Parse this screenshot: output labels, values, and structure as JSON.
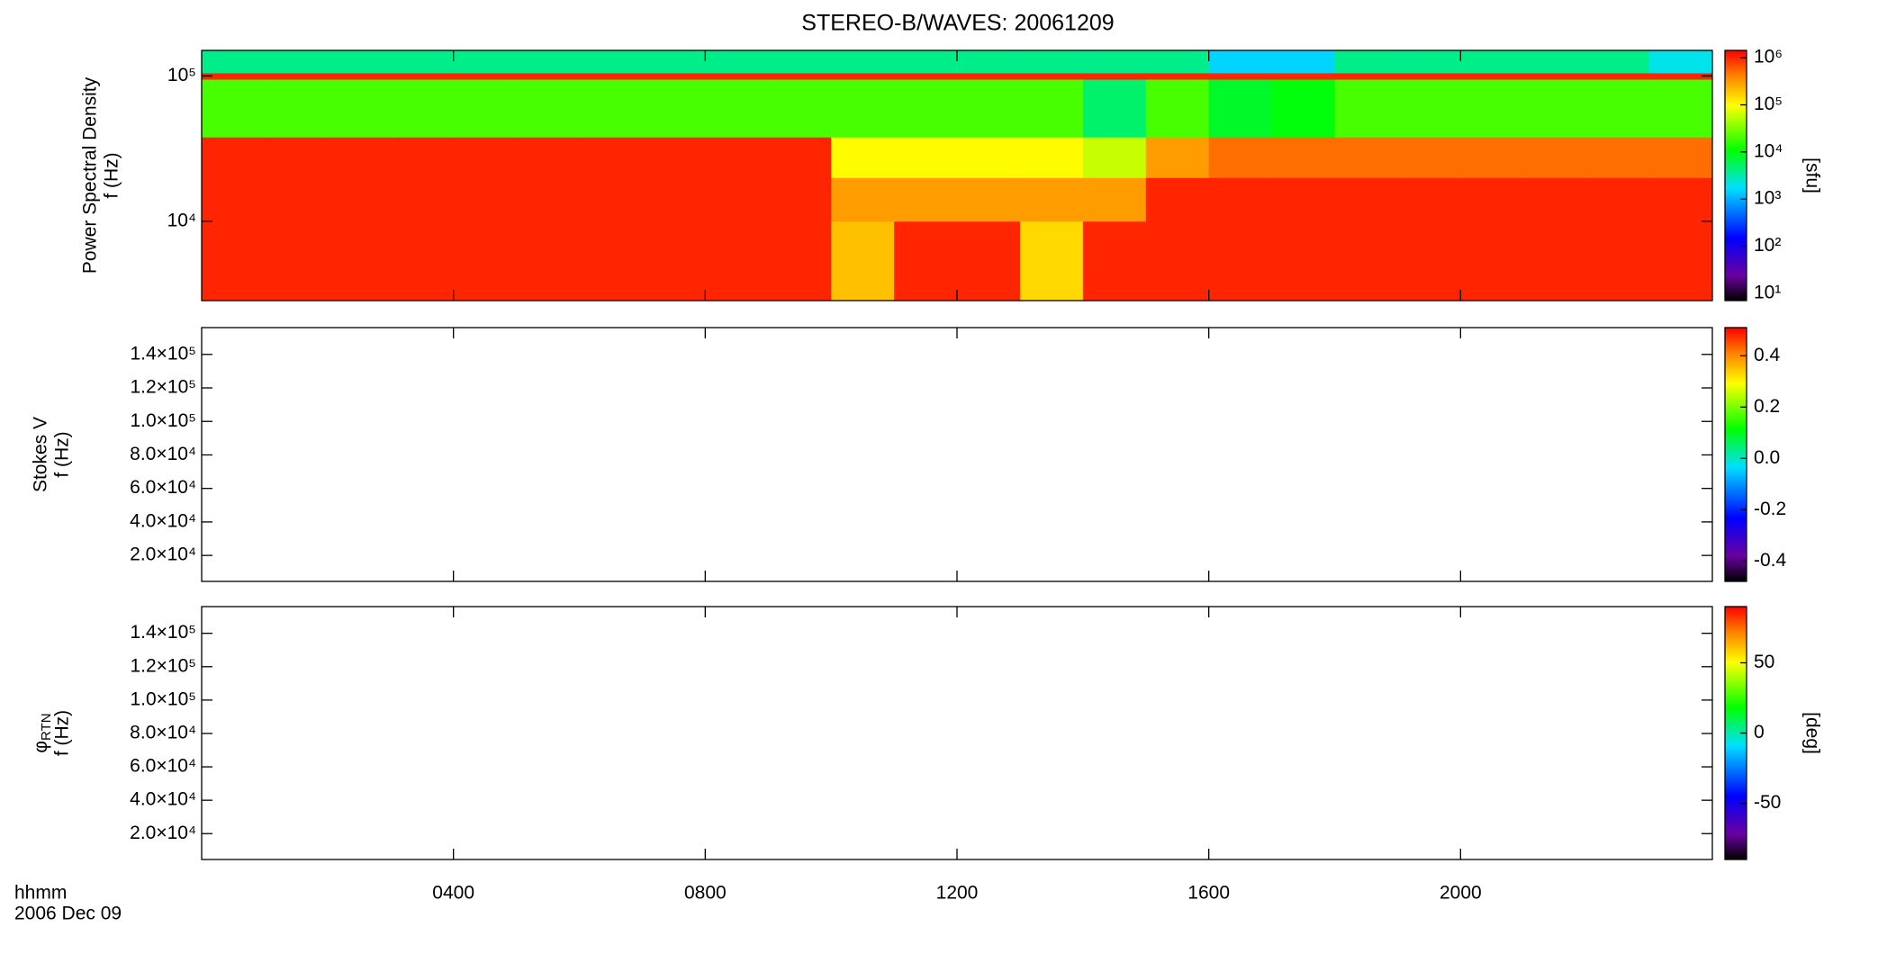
{
  "chart_data": [
    {
      "type": "heatmap",
      "title": "STEREO-B/WAVES: 20061209",
      "ylabel": [
        "Power Spectral Density",
        "f (Hz)"
      ],
      "x": [
        0,
        1,
        2,
        3,
        4,
        5,
        6,
        7,
        8,
        9,
        10,
        11,
        12,
        13,
        14,
        15,
        16,
        17,
        18,
        19,
        20,
        21,
        22,
        23,
        24
      ],
      "y": [
        2840,
        10000,
        20000,
        38000,
        95000,
        105000,
        150000
      ],
      "values": [
        [
          1000000,
          1000000,
          1000000,
          1000000,
          1000000,
          1000000,
          1000000,
          1000000,
          1000000,
          1000000,
          200000,
          1000000,
          1000000,
          150000,
          1000000,
          1000000,
          1000000,
          1000000,
          1000000,
          1000000,
          1000000,
          1000000,
          1000000,
          1000000
        ],
        [
          1000000,
          1000000,
          1000000,
          1000000,
          1000000,
          1000000,
          1000000,
          1000000,
          1000000,
          1000000,
          300000,
          300000,
          300000,
          300000,
          300000,
          1000000,
          1000000,
          1000000,
          1000000,
          1000000,
          1000000,
          1000000,
          1000000,
          1000000
        ],
        [
          1000000,
          1000000,
          1000000,
          1000000,
          1000000,
          1000000,
          1000000,
          1000000,
          1000000,
          1000000,
          100000,
          100000,
          100000,
          100000,
          60000,
          300000,
          500000,
          500000,
          500000,
          500000,
          500000,
          500000,
          500000,
          500000
        ],
        [
          20000,
          20000,
          20000,
          20000,
          20000,
          20000,
          20000,
          20000,
          20000,
          20000,
          20000,
          20000,
          20000,
          20000,
          5000,
          20000,
          8000,
          10000,
          20000,
          20000,
          20000,
          20000,
          20000,
          20000
        ],
        [
          1000000,
          1000000,
          1000000,
          1000000,
          1000000,
          1000000,
          1000000,
          1000000,
          1000000,
          1000000,
          1000000,
          1000000,
          1000000,
          1000000,
          1000000,
          1000000,
          1000000,
          1000000,
          1000000,
          1000000,
          1000000,
          1000000,
          1000000,
          1000000
        ],
        [
          4000,
          4000,
          4000,
          4000,
          4000,
          4000,
          4000,
          4000,
          4000,
          4000,
          4000,
          4000,
          4000,
          4000,
          4000,
          4000,
          1500,
          1500,
          4000,
          4000,
          4000,
          4000,
          4000,
          2000
        ]
      ],
      "xlim": [
        0,
        24
      ],
      "xticks": [
        4,
        8,
        12,
        16,
        20
      ],
      "ylim": [
        2840,
        150000
      ],
      "ylog": true,
      "yticks": [
        {
          "value": 10000,
          "label": "10⁴"
        },
        {
          "value": 100000,
          "label": "10⁵"
        }
      ],
      "clim": [
        7,
        1430000
      ],
      "clog": true,
      "clabel": "[sfu]",
      "cticks": [
        {
          "value": 10,
          "label": "10¹"
        },
        {
          "value": 100,
          "label": "10²"
        },
        {
          "value": 1000,
          "label": "10³"
        },
        {
          "value": 10000,
          "label": "10⁴"
        },
        {
          "value": 100000,
          "label": "10⁵"
        },
        {
          "value": 1000000,
          "label": "10⁶"
        }
      ]
    },
    {
      "type": "heatmap",
      "ylabel": [
        "Stokes V",
        "f (Hz)"
      ],
      "xlim": [
        0,
        24
      ],
      "xticks": [
        4,
        8,
        12,
        16,
        20
      ],
      "ylim": [
        4500,
        156000
      ],
      "yticks": [
        {
          "value": 20000,
          "label": "2.0×10⁴"
        },
        {
          "value": 40000,
          "label": "4.0×10⁴"
        },
        {
          "value": 60000,
          "label": "6.0×10⁴"
        },
        {
          "value": 80000,
          "label": "8.0×10⁴"
        },
        {
          "value": 100000,
          "label": "1.0×10⁵"
        },
        {
          "value": 120000,
          "label": "1.2×10⁵"
        },
        {
          "value": 140000,
          "label": "1.4×10⁵"
        }
      ],
      "clim": [
        -0.48,
        0.51
      ],
      "cticks": [
        -0.4,
        -0.2,
        {
          "value": 0,
          "label": "0.0"
        },
        0.2,
        0.4
      ]
    },
    {
      "type": "heatmap",
      "ylabel": [
        [
          "φ",
          "RTN"
        ],
        "f (Hz)"
      ],
      "xlim": [
        0,
        24
      ],
      "xticks": [
        {
          "value": 4,
          "label": "0400"
        },
        {
          "value": 8,
          "label": "0800"
        },
        {
          "value": 12,
          "label": "1200"
        },
        {
          "value": 16,
          "label": "1600"
        },
        {
          "value": 20,
          "label": "2000"
        }
      ],
      "xlabel": [
        "hhmm",
        "2006 Dec 09"
      ],
      "ylim": [
        4500,
        156000
      ],
      "yticks": [
        {
          "value": 20000,
          "label": "2.0×10⁴"
        },
        {
          "value": 40000,
          "label": "4.0×10⁴"
        },
        {
          "value": 60000,
          "label": "6.0×10⁴"
        },
        {
          "value": 80000,
          "label": "8.0×10⁴"
        },
        {
          "value": 100000,
          "label": "1.0×10⁵"
        },
        {
          "value": 120000,
          "label": "1.2×10⁵"
        },
        {
          "value": 140000,
          "label": "1.4×10⁵"
        }
      ],
      "clim": [
        -90,
        90
      ],
      "clabel": "[deg]",
      "cticks": [
        -50,
        0,
        50
      ]
    }
  ]
}
